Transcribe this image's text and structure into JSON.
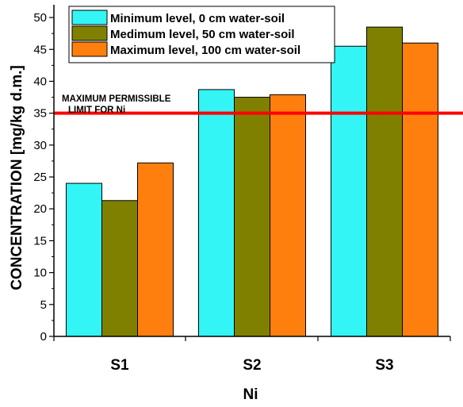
{
  "chart_data": {
    "type": "bar",
    "categories": [
      "S1",
      "S2",
      "S3"
    ],
    "series": [
      {
        "name": "Minimum level, 0 cm water-soil",
        "color": "#33f5f5",
        "values": [
          24.0,
          38.7,
          45.5
        ]
      },
      {
        "name": "Medimum level, 50 cm water-soil",
        "color": "#808000",
        "values": [
          21.3,
          37.5,
          48.5
        ]
      },
      {
        "name": "Maximum level, 100 cm water-soil",
        "color": "#ff7f0e",
        "values": [
          27.2,
          37.9,
          46.0
        ]
      }
    ],
    "title": "",
    "xlabel": "Ni",
    "ylabel": "CONCENTRATION [mg/kg d.m.]",
    "ylim": [
      0,
      52
    ],
    "yticks": [
      0,
      5,
      10,
      15,
      20,
      25,
      30,
      35,
      40,
      45,
      50
    ],
    "grid": false,
    "legend_position": "top-right",
    "reference_line": {
      "value": 35,
      "color": "#ff0000"
    },
    "annotation": {
      "line1": "MAXIMUM PERMISSIBLE",
      "line2": "LIMIT FOR Ni"
    }
  }
}
